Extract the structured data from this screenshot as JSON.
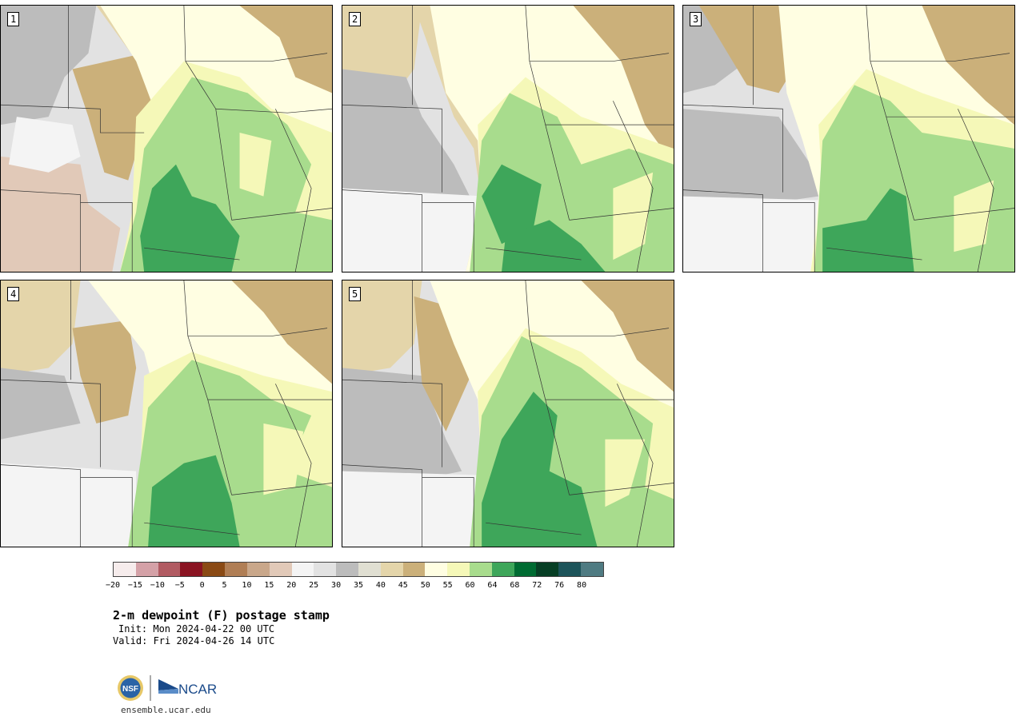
{
  "panels": [
    {
      "label": "1"
    },
    {
      "label": "2"
    },
    {
      "label": "3"
    },
    {
      "label": "4"
    },
    {
      "label": "5"
    }
  ],
  "colorbar": {
    "colors": [
      "#f6ecec",
      "#d4a1a7",
      "#b15b62",
      "#8a1422",
      "#8a4a15",
      "#b07e55",
      "#c9a78a",
      "#e1c9b8",
      "#f4f4f4",
      "#e2e2e2",
      "#bcbcbc",
      "#e0dfd2",
      "#e4d5aa",
      "#cbb07a",
      "#fffee2",
      "#f5f8b8",
      "#a8dc8d",
      "#3ea65a",
      "#006b32",
      "#073f25",
      "#1d545a",
      "#4f7b82"
    ],
    "ticks": [
      "−20",
      "−15",
      "−10",
      "−5",
      "0",
      "5",
      "10",
      "15",
      "20",
      "25",
      "30",
      "35",
      "40",
      "45",
      "50",
      "55",
      "60",
      "64",
      "68",
      "72",
      "76",
      "80"
    ]
  },
  "title": "2-m dewpoint (F) postage stamp",
  "init": "Init: Mon 2024-04-22 00 UTC",
  "valid": "Valid: Fri 2024-04-26 14 UTC",
  "logo_left": "NSF",
  "logo_right": "NCAR",
  "website": "ensemble.ucar.edu"
}
